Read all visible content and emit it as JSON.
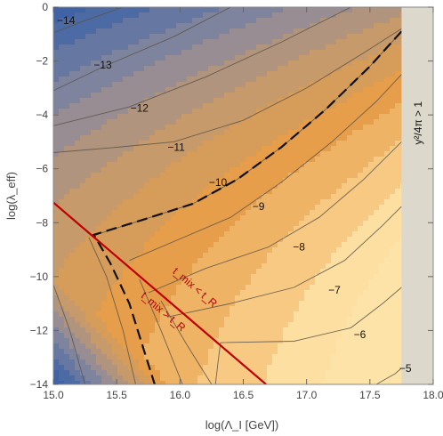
{
  "chart_data": {
    "type": "contour",
    "xlabel": "log(Λ_I [GeV])",
    "ylabel": "log(λ_eff)",
    "xlim": [
      15.0,
      18.0
    ],
    "ylim": [
      -14,
      0
    ],
    "x_ticks": [
      "15.0",
      "15.5",
      "16.0",
      "16.5",
      "17.0",
      "17.5",
      "18.0"
    ],
    "y_ticks": [
      "0",
      "−2",
      "−4",
      "−6",
      "−8",
      "−10",
      "−12",
      "−14"
    ],
    "contour_levels": [
      -14,
      -13,
      -12,
      -11,
      -10,
      -9,
      -8,
      -7,
      -6,
      -5
    ],
    "contour_labels": [
      {
        "text": "−14",
        "x": 15.1,
        "y": -0.5
      },
      {
        "text": "−13",
        "x": 15.39,
        "y": -2.15
      },
      {
        "text": "−12",
        "x": 15.68,
        "y": -3.75
      },
      {
        "text": "−11",
        "x": 15.97,
        "y": -5.2
      },
      {
        "text": "−10",
        "x": 16.3,
        "y": -6.5
      },
      {
        "text": "−9",
        "x": 16.62,
        "y": -7.4
      },
      {
        "text": "−8",
        "x": 16.94,
        "y": -8.9
      },
      {
        "text": "−7",
        "x": 17.22,
        "y": -10.5
      },
      {
        "text": "−6",
        "x": 17.42,
        "y": -12.15
      },
      {
        "text": "−5",
        "x": 17.78,
        "y": -13.4
      }
    ],
    "excluded_region": {
      "label": "y²/4π > 1",
      "x_from": 17.75,
      "x_to": 18.0
    },
    "boundary_line": {
      "from": [
        15.0,
        -7.25
      ],
      "to": [
        16.68,
        -14.0
      ],
      "color": "#c00000"
    },
    "region_labels": [
      {
        "text": "t_mix < t_R",
        "x": 16.1,
        "y": -10.5
      },
      {
        "text": "t_mix > t_R",
        "x": 15.85,
        "y": -11.4
      }
    ],
    "colors": {
      "low": "#3f63a6",
      "high": "#fde3a7",
      "boundary": "#c00000",
      "excluded": "#dcd8cc"
    }
  }
}
